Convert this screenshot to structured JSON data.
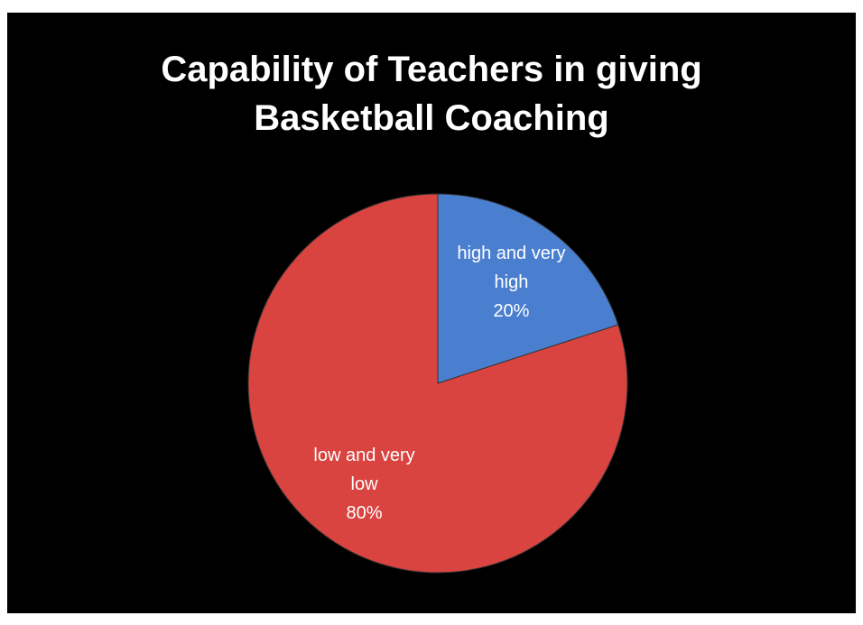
{
  "chart_data": {
    "type": "pie",
    "title": "Capability of Teachers in giving Basketball Coaching",
    "categories": [
      "high and very high",
      "low and very low"
    ],
    "values": [
      20,
      80
    ],
    "value_labels": [
      "20%",
      "80%"
    ],
    "colors": [
      "#4a7fd0",
      "#d94340"
    ]
  }
}
